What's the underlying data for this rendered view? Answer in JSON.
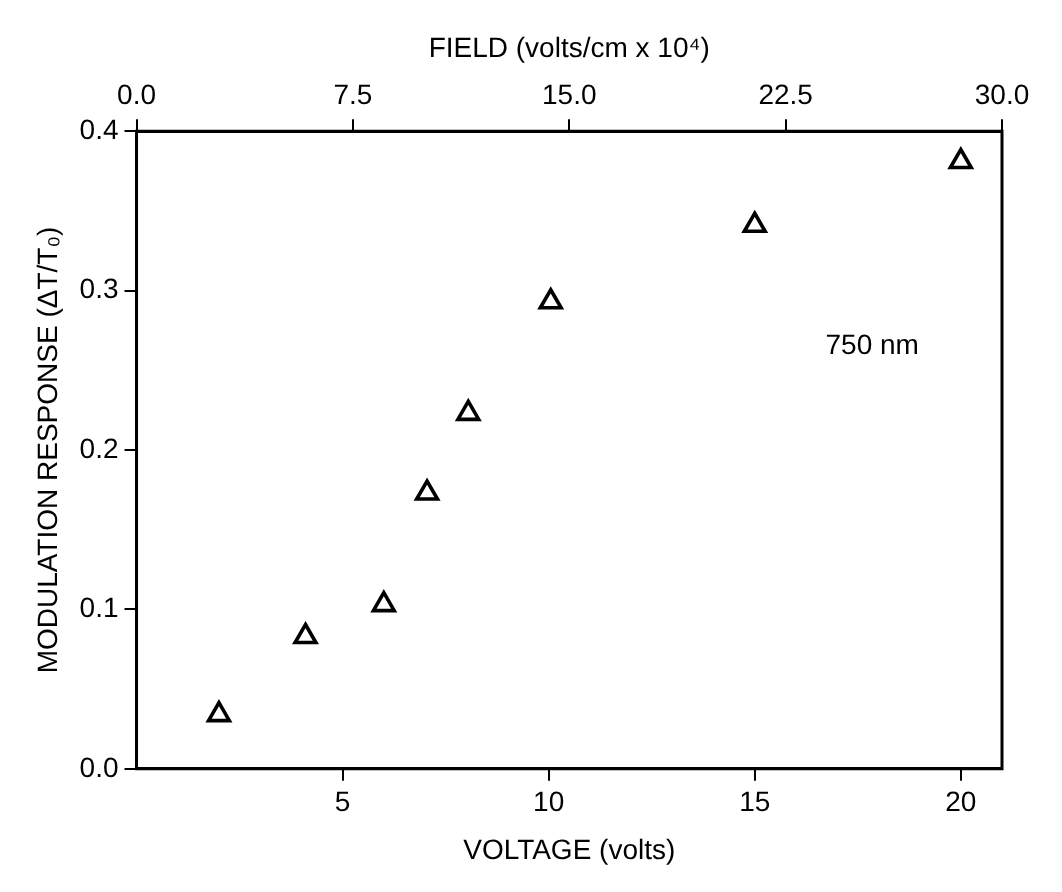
{
  "chart_data": {
    "type": "scatter",
    "xlabel": "VOLTAGE (volts)",
    "ylabel": "MODULATION RESPONSE (ΔT/T₀)",
    "x2label": "FIELD (volts/cm x 10⁴)",
    "x": [
      2.0,
      4.1,
      6.0,
      7.05,
      8.05,
      10.05,
      15.0,
      20.0
    ],
    "series": [
      {
        "color": "#000000",
        "values": [
          0.034,
          0.083,
          0.103,
          0.173,
          0.223,
          0.293,
          0.341,
          0.381
        ]
      }
    ],
    "xlim": [
      0,
      21
    ],
    "xticks": [
      5,
      10,
      15,
      20
    ],
    "x2lim": [
      0,
      30
    ],
    "x2ticks": [
      {
        "value": 0,
        "label": "0.0"
      },
      {
        "value": 7.5,
        "label": "7.5"
      },
      {
        "value": 15,
        "label": "15.0"
      },
      {
        "value": 22.5,
        "label": "22.5"
      },
      {
        "value": 30,
        "label": "30.0"
      }
    ],
    "ylim": [
      0,
      0.4
    ],
    "yticks": [
      {
        "value": 0,
        "label": "0.0"
      },
      {
        "value": 0.1,
        "label": "0.1"
      },
      {
        "value": 0.2,
        "label": "0.2"
      },
      {
        "value": 0.3,
        "label": "0.3"
      },
      {
        "value": 0.4,
        "label": "0.4"
      }
    ],
    "annotations": [
      "750 nm"
    ],
    "marker": "triangle",
    "grid": false,
    "legend": false
  }
}
